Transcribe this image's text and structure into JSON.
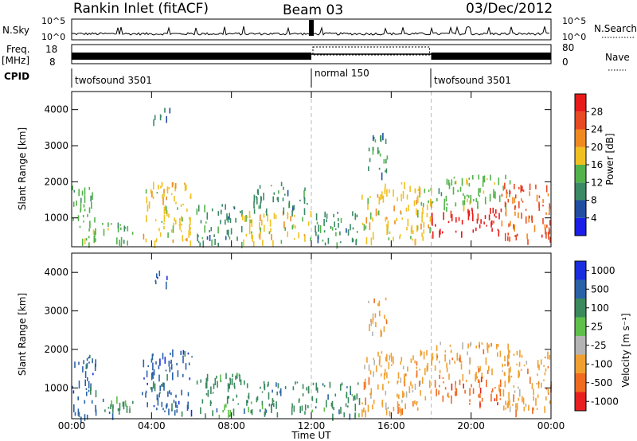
{
  "header": {
    "station": "Rankin Inlet (fitACF)",
    "beam": "Beam 03",
    "date": "03/Dec/2012"
  },
  "summary_panels": {
    "nsky_label": "N.Sky",
    "nsky_ticks": [
      "10^5",
      "10^0"
    ],
    "nsearch_label": "N.Search",
    "nsearch_ticks": [
      "10^5",
      "10^0"
    ],
    "freq_label": "Freq.",
    "freq_unit": "[MHz]",
    "freq_ticks": [
      "18",
      "8"
    ],
    "nave_label": "Nave",
    "nave_ticks": [
      "80",
      "0"
    ],
    "cpid_label": "CPID",
    "cpid_segments": [
      {
        "label": "twofsound 3501",
        "start": 0,
        "end": 12
      },
      {
        "label": "normal 150",
        "start": 12,
        "end": 18
      },
      {
        "label": "twofsound 3501",
        "start": 18,
        "end": 24
      }
    ]
  },
  "chart_data": [
    {
      "type": "heatmap",
      "title": "",
      "xlabel": "Time UT",
      "ylabel": "Slant Range [km]",
      "xlim": [
        0,
        24
      ],
      "ylim": [
        200,
        4500
      ],
      "x_ticks": [
        "00:00",
        "04:00",
        "08:00",
        "12:00",
        "16:00",
        "20:00",
        "00:00"
      ],
      "y_ticks": [
        1000,
        2000,
        3000,
        4000
      ],
      "colorbar_label": "Power [dB]",
      "colorbar_ticks": [
        4,
        8,
        12,
        16,
        20,
        24,
        28
      ],
      "colorbar_range": [
        0,
        30
      ],
      "colorbar_colors": [
        "#1a1ee8",
        "#214ea3",
        "#3a8a66",
        "#52b34a",
        "#f0c020",
        "#f08a20",
        "#e84a22",
        "#e81a1a"
      ],
      "regions": [
        {
          "t0": 0.0,
          "t1": 1.2,
          "r0": 250,
          "r1": 1900,
          "value": 12
        },
        {
          "t0": 1.5,
          "t1": 3.2,
          "r0": 300,
          "r1": 900,
          "value": 14
        },
        {
          "t0": 3.5,
          "t1": 6.0,
          "r0": 300,
          "r1": 2000,
          "value": 16
        },
        {
          "t0": 4.0,
          "t1": 5.0,
          "r0": 3700,
          "r1": 4050,
          "value": 8
        },
        {
          "t0": 6.2,
          "t1": 8.5,
          "r0": 300,
          "r1": 1400,
          "value": 10
        },
        {
          "t0": 8.5,
          "t1": 12.0,
          "r0": 350,
          "r1": 1200,
          "value": 18
        },
        {
          "t0": 9.0,
          "t1": 11.8,
          "r0": 1200,
          "r1": 2000,
          "value": 10
        },
        {
          "t0": 12.0,
          "t1": 14.5,
          "r0": 300,
          "r1": 1200,
          "value": 10
        },
        {
          "t0": 14.5,
          "t1": 18.0,
          "r0": 400,
          "r1": 2000,
          "value": 16
        },
        {
          "t0": 14.8,
          "t1": 15.8,
          "r0": 2200,
          "r1": 3400,
          "value": 8
        },
        {
          "t0": 18.0,
          "t1": 21.5,
          "r0": 600,
          "r1": 1300,
          "value": 28
        },
        {
          "t0": 18.0,
          "t1": 22.0,
          "r0": 1300,
          "r1": 2200,
          "value": 14
        },
        {
          "t0": 21.5,
          "t1": 24.0,
          "r0": 400,
          "r1": 2000,
          "value": 26
        }
      ]
    },
    {
      "type": "heatmap",
      "title": "",
      "xlabel": "Time UT",
      "ylabel": "Slant Range [km]",
      "xlim": [
        0,
        24
      ],
      "ylim": [
        200,
        4500
      ],
      "x_ticks": [
        "00:00",
        "04:00",
        "08:00",
        "12:00",
        "16:00",
        "20:00",
        "00:00"
      ],
      "y_ticks": [
        1000,
        2000,
        3000,
        4000
      ],
      "colorbar_label": "Velocity [m s⁻¹]",
      "colorbar_ticks": [
        "1000",
        "500",
        "100",
        "25",
        "-25",
        "-100",
        "-500",
        "-1000"
      ],
      "colorbar_colors": [
        "#1a2ee0",
        "#2a62a8",
        "#3a8a5e",
        "#5ec04a",
        "#b4b4b4",
        "#f0a030",
        "#f06a20",
        "#e82020"
      ],
      "regions": [
        {
          "t0": 0.0,
          "t1": 1.2,
          "r0": 250,
          "r1": 1900,
          "value": 500
        },
        {
          "t0": 1.5,
          "t1": 3.2,
          "r0": 300,
          "r1": 900,
          "value": 100
        },
        {
          "t0": 3.5,
          "t1": 6.0,
          "r0": 300,
          "r1": 2000,
          "value": 500
        },
        {
          "t0": 4.0,
          "t1": 5.0,
          "r0": 3700,
          "r1": 4050,
          "value": 500
        },
        {
          "t0": 6.2,
          "t1": 8.5,
          "r0": 300,
          "r1": 1400,
          "value": 100
        },
        {
          "t0": 8.5,
          "t1": 12.0,
          "r0": 350,
          "r1": 1200,
          "value": 100
        },
        {
          "t0": 12.0,
          "t1": 14.5,
          "r0": 300,
          "r1": 1200,
          "value": 100
        },
        {
          "t0": 14.5,
          "t1": 18.0,
          "r0": 400,
          "r1": 2000,
          "value": -100
        },
        {
          "t0": 14.8,
          "t1": 15.8,
          "r0": 2400,
          "r1": 3400,
          "value": -100
        },
        {
          "t0": 18.0,
          "t1": 21.5,
          "r0": 600,
          "r1": 1300,
          "value": -500
        },
        {
          "t0": 18.0,
          "t1": 22.0,
          "r0": 1300,
          "r1": 2200,
          "value": -100
        },
        {
          "t0": 21.5,
          "t1": 24.0,
          "r0": 400,
          "r1": 2000,
          "value": -100
        }
      ]
    }
  ]
}
